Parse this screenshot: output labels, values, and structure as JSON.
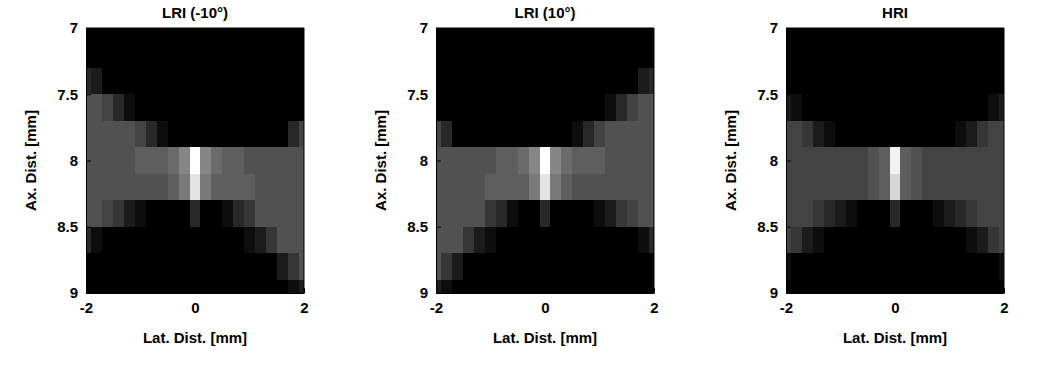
{
  "chart_data": [
    {
      "type": "heatmap",
      "title": "LRI (-10°)",
      "x_label": "Lat. Dist. [mm]",
      "y_label": "Ax. Dist. [mm]",
      "xlim": [
        -2,
        2
      ],
      "ylim": [
        7,
        9
      ],
      "xticks": [
        -2,
        0,
        2
      ],
      "yticks": [
        7,
        7.5,
        8,
        8.5,
        9
      ],
      "x": [
        -2,
        -1.8,
        -1.6,
        -1.4,
        -1.2,
        -1,
        -0.8,
        -0.6,
        -0.4,
        -0.2,
        0,
        0.2,
        0.4,
        0.6,
        0.8,
        1,
        1.2,
        1.4,
        1.6,
        1.8,
        2
      ],
      "y": [
        7,
        7.2,
        7.4,
        7.6,
        7.8,
        8,
        8.2,
        8.4,
        8.6,
        8.8,
        9
      ],
      "cells": [
        [
          0,
          0,
          0,
          0,
          0,
          0,
          0,
          0,
          0,
          0,
          0,
          0,
          0,
          0,
          0,
          0,
          0,
          0,
          0,
          0,
          0
        ],
        [
          0,
          0,
          0,
          0,
          0,
          0,
          0,
          0,
          0,
          0,
          0,
          0,
          0,
          0,
          0,
          0,
          0,
          0,
          0,
          0,
          0
        ],
        [
          0.15,
          0.1,
          0,
          0,
          0,
          0,
          0,
          0,
          0,
          0,
          0,
          0,
          0,
          0,
          0,
          0,
          0,
          0,
          0,
          0,
          0
        ],
        [
          0.3,
          0.3,
          0.25,
          0.15,
          0.05,
          0,
          0,
          0,
          0,
          0,
          0,
          0,
          0,
          0,
          0,
          0,
          0,
          0,
          0,
          0,
          0
        ],
        [
          0.3,
          0.3,
          0.3,
          0.3,
          0.3,
          0.25,
          0.15,
          0.05,
          0,
          0,
          0,
          0,
          0,
          0,
          0,
          0,
          0,
          0,
          0,
          0.15,
          0.25
        ],
        [
          0.3,
          0.3,
          0.3,
          0.3,
          0.3,
          0.35,
          0.35,
          0.35,
          0.4,
          0.5,
          0.95,
          0.5,
          0.4,
          0.35,
          0.35,
          0.3,
          0.3,
          0.3,
          0.3,
          0.3,
          0.3
        ],
        [
          0.3,
          0.3,
          0.3,
          0.3,
          0.3,
          0.3,
          0.3,
          0.3,
          0.35,
          0.45,
          0.85,
          0.45,
          0.35,
          0.35,
          0.35,
          0.35,
          0.3,
          0.3,
          0.3,
          0.3,
          0.3
        ],
        [
          0.3,
          0.3,
          0.25,
          0.2,
          0.1,
          0.05,
          0,
          0,
          0,
          0,
          0.15,
          0,
          0,
          0.05,
          0.15,
          0.2,
          0.3,
          0.3,
          0.3,
          0.3,
          0.3
        ],
        [
          0.15,
          0.05,
          0,
          0,
          0,
          0,
          0,
          0,
          0,
          0,
          0,
          0,
          0,
          0,
          0,
          0.05,
          0.1,
          0.2,
          0.3,
          0.3,
          0.3
        ],
        [
          0,
          0,
          0,
          0,
          0,
          0,
          0,
          0,
          0,
          0,
          0,
          0,
          0,
          0,
          0,
          0,
          0,
          0,
          0.1,
          0.2,
          0.3
        ],
        [
          0,
          0,
          0,
          0,
          0,
          0,
          0,
          0,
          0,
          0,
          0,
          0,
          0,
          0,
          0,
          0,
          0,
          0,
          0,
          0.05,
          0.1
        ]
      ]
    },
    {
      "type": "heatmap",
      "title": "LRI (10°)",
      "x_label": "Lat. Dist. [mm]",
      "y_label": "Ax. Dist. [mm]",
      "xlim": [
        -2,
        2
      ],
      "ylim": [
        7,
        9
      ],
      "xticks": [
        -2,
        0,
        2
      ],
      "yticks": [
        7,
        7.5,
        8,
        8.5,
        9
      ],
      "x": [
        -2,
        -1.8,
        -1.6,
        -1.4,
        -1.2,
        -1,
        -0.8,
        -0.6,
        -0.4,
        -0.2,
        0,
        0.2,
        0.4,
        0.6,
        0.8,
        1,
        1.2,
        1.4,
        1.6,
        1.8,
        2
      ],
      "y": [
        7,
        7.2,
        7.4,
        7.6,
        7.8,
        8,
        8.2,
        8.4,
        8.6,
        8.8,
        9
      ],
      "cells": [
        [
          0,
          0,
          0,
          0,
          0,
          0,
          0,
          0,
          0,
          0,
          0,
          0,
          0,
          0,
          0,
          0,
          0,
          0,
          0,
          0,
          0
        ],
        [
          0,
          0,
          0,
          0,
          0,
          0,
          0,
          0,
          0,
          0,
          0,
          0,
          0,
          0,
          0,
          0,
          0,
          0,
          0,
          0,
          0
        ],
        [
          0,
          0,
          0,
          0,
          0,
          0,
          0,
          0,
          0,
          0,
          0,
          0,
          0,
          0,
          0,
          0,
          0,
          0,
          0,
          0.1,
          0.15
        ],
        [
          0,
          0,
          0,
          0,
          0,
          0,
          0,
          0,
          0,
          0,
          0,
          0,
          0,
          0,
          0,
          0,
          0.05,
          0.15,
          0.25,
          0.3,
          0.3
        ],
        [
          0.25,
          0.15,
          0,
          0,
          0,
          0,
          0,
          0,
          0,
          0,
          0,
          0,
          0,
          0.05,
          0.15,
          0.25,
          0.3,
          0.3,
          0.3,
          0.3,
          0.3
        ],
        [
          0.3,
          0.3,
          0.3,
          0.3,
          0.3,
          0.3,
          0.35,
          0.35,
          0.4,
          0.5,
          0.95,
          0.5,
          0.4,
          0.35,
          0.35,
          0.35,
          0.3,
          0.3,
          0.3,
          0.3,
          0.3
        ],
        [
          0.3,
          0.3,
          0.3,
          0.3,
          0.3,
          0.35,
          0.35,
          0.35,
          0.35,
          0.45,
          0.85,
          0.45,
          0.35,
          0.3,
          0.3,
          0.3,
          0.3,
          0.3,
          0.3,
          0.3,
          0.3
        ],
        [
          0.3,
          0.3,
          0.3,
          0.3,
          0.3,
          0.2,
          0.15,
          0.05,
          0,
          0,
          0.15,
          0,
          0,
          0,
          0,
          0.05,
          0.1,
          0.2,
          0.25,
          0.3,
          0.3
        ],
        [
          0.3,
          0.3,
          0.3,
          0.2,
          0.1,
          0.05,
          0,
          0,
          0,
          0,
          0,
          0,
          0,
          0,
          0,
          0,
          0,
          0,
          0,
          0.05,
          0.15
        ],
        [
          0.3,
          0.2,
          0.1,
          0,
          0,
          0,
          0,
          0,
          0,
          0,
          0,
          0,
          0,
          0,
          0,
          0,
          0,
          0,
          0,
          0,
          0
        ],
        [
          0.1,
          0.05,
          0,
          0,
          0,
          0,
          0,
          0,
          0,
          0,
          0,
          0,
          0,
          0,
          0,
          0,
          0,
          0,
          0,
          0,
          0
        ]
      ]
    },
    {
      "type": "heatmap",
      "title": "HRI",
      "x_label": "Lat. Dist. [mm]",
      "y_label": "Ax. Dist. [mm]",
      "xlim": [
        -2,
        2
      ],
      "ylim": [
        7,
        9
      ],
      "xticks": [
        -2,
        0,
        2
      ],
      "yticks": [
        7,
        7.5,
        8,
        8.5,
        9
      ],
      "x": [
        -2,
        -1.8,
        -1.6,
        -1.4,
        -1.2,
        -1,
        -0.8,
        -0.6,
        -0.4,
        -0.2,
        0,
        0.2,
        0.4,
        0.6,
        0.8,
        1,
        1.2,
        1.4,
        1.6,
        1.8,
        2
      ],
      "y": [
        7,
        7.2,
        7.4,
        7.6,
        7.8,
        8,
        8.2,
        8.4,
        8.6,
        8.8,
        9
      ],
      "cells": [
        [
          0,
          0,
          0,
          0,
          0,
          0,
          0,
          0,
          0,
          0,
          0,
          0,
          0,
          0,
          0,
          0,
          0,
          0,
          0,
          0,
          0
        ],
        [
          0,
          0,
          0,
          0,
          0,
          0,
          0,
          0,
          0,
          0,
          0,
          0,
          0,
          0,
          0,
          0,
          0,
          0,
          0,
          0,
          0
        ],
        [
          0,
          0,
          0,
          0,
          0,
          0,
          0,
          0,
          0,
          0,
          0,
          0,
          0,
          0,
          0,
          0,
          0,
          0,
          0,
          0,
          0
        ],
        [
          0.1,
          0.05,
          0,
          0,
          0,
          0,
          0,
          0,
          0,
          0,
          0,
          0,
          0,
          0,
          0,
          0,
          0,
          0,
          0,
          0.05,
          0.1
        ],
        [
          0.25,
          0.25,
          0.2,
          0.1,
          0.05,
          0,
          0,
          0,
          0,
          0,
          0,
          0,
          0,
          0,
          0,
          0,
          0.05,
          0.1,
          0.2,
          0.25,
          0.25
        ],
        [
          0.25,
          0.25,
          0.25,
          0.25,
          0.25,
          0.25,
          0.25,
          0.25,
          0.3,
          0.35,
          0.9,
          0.35,
          0.3,
          0.25,
          0.25,
          0.25,
          0.25,
          0.25,
          0.25,
          0.25,
          0.25
        ],
        [
          0.25,
          0.25,
          0.25,
          0.25,
          0.25,
          0.25,
          0.25,
          0.25,
          0.3,
          0.35,
          0.8,
          0.35,
          0.3,
          0.25,
          0.25,
          0.25,
          0.25,
          0.25,
          0.25,
          0.25,
          0.25
        ],
        [
          0.25,
          0.25,
          0.25,
          0.2,
          0.15,
          0.1,
          0.05,
          0,
          0,
          0,
          0.15,
          0,
          0,
          0,
          0.05,
          0.1,
          0.15,
          0.2,
          0.25,
          0.25,
          0.25
        ],
        [
          0.25,
          0.2,
          0.1,
          0.05,
          0,
          0,
          0,
          0,
          0,
          0,
          0,
          0,
          0,
          0,
          0,
          0,
          0,
          0.05,
          0.1,
          0.2,
          0.25
        ],
        [
          0.05,
          0,
          0,
          0,
          0,
          0,
          0,
          0,
          0,
          0,
          0,
          0,
          0,
          0,
          0,
          0,
          0,
          0,
          0,
          0,
          0.05
        ],
        [
          0,
          0,
          0,
          0,
          0,
          0,
          0,
          0,
          0,
          0,
          0,
          0,
          0,
          0,
          0,
          0,
          0,
          0,
          0,
          0,
          0
        ]
      ]
    }
  ]
}
